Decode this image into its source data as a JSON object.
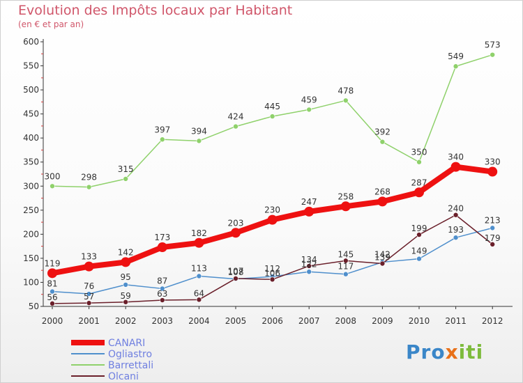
{
  "title": "Evolution des Impôts locaux par Habitant",
  "subtitle": "(en € et par an)",
  "logo": "Proxiti",
  "chart_data": {
    "type": "line",
    "title": "Evolution des Impôts locaux par Habitant",
    "subtitle": "(en € et par an)",
    "xlabel": "",
    "ylabel": "",
    "x": [
      "2000",
      "2001",
      "2002",
      "2003",
      "2004",
      "2005",
      "2006",
      "2007",
      "2008",
      "2009",
      "2010",
      "2011",
      "2012"
    ],
    "ylim": [
      50,
      600
    ],
    "yticks": [
      50,
      100,
      150,
      200,
      250,
      300,
      350,
      400,
      450,
      500,
      550,
      600
    ],
    "grid": false,
    "legend": "bottom-left",
    "series": [
      {
        "name": "CANARI",
        "color": "#ee1111",
        "values": [
          119,
          133,
          142,
          173,
          182,
          203,
          230,
          247,
          258,
          268,
          287,
          340,
          330
        ]
      },
      {
        "name": "Ogliastro",
        "color": "#4f8fcc",
        "values": [
          81,
          76,
          95,
          87,
          113,
          107,
          112,
          122,
          117,
          142,
          149,
          193,
          213
        ]
      },
      {
        "name": "Barrettali",
        "color": "#8fd16b",
        "values": [
          300,
          298,
          315,
          397,
          394,
          424,
          445,
          459,
          478,
          392,
          350,
          549,
          573
        ]
      },
      {
        "name": "Olcani",
        "color": "#6a1f2a",
        "values": [
          56,
          57,
          59,
          63,
          64,
          108,
          106,
          134,
          145,
          139,
          199,
          240,
          179
        ]
      }
    ]
  }
}
